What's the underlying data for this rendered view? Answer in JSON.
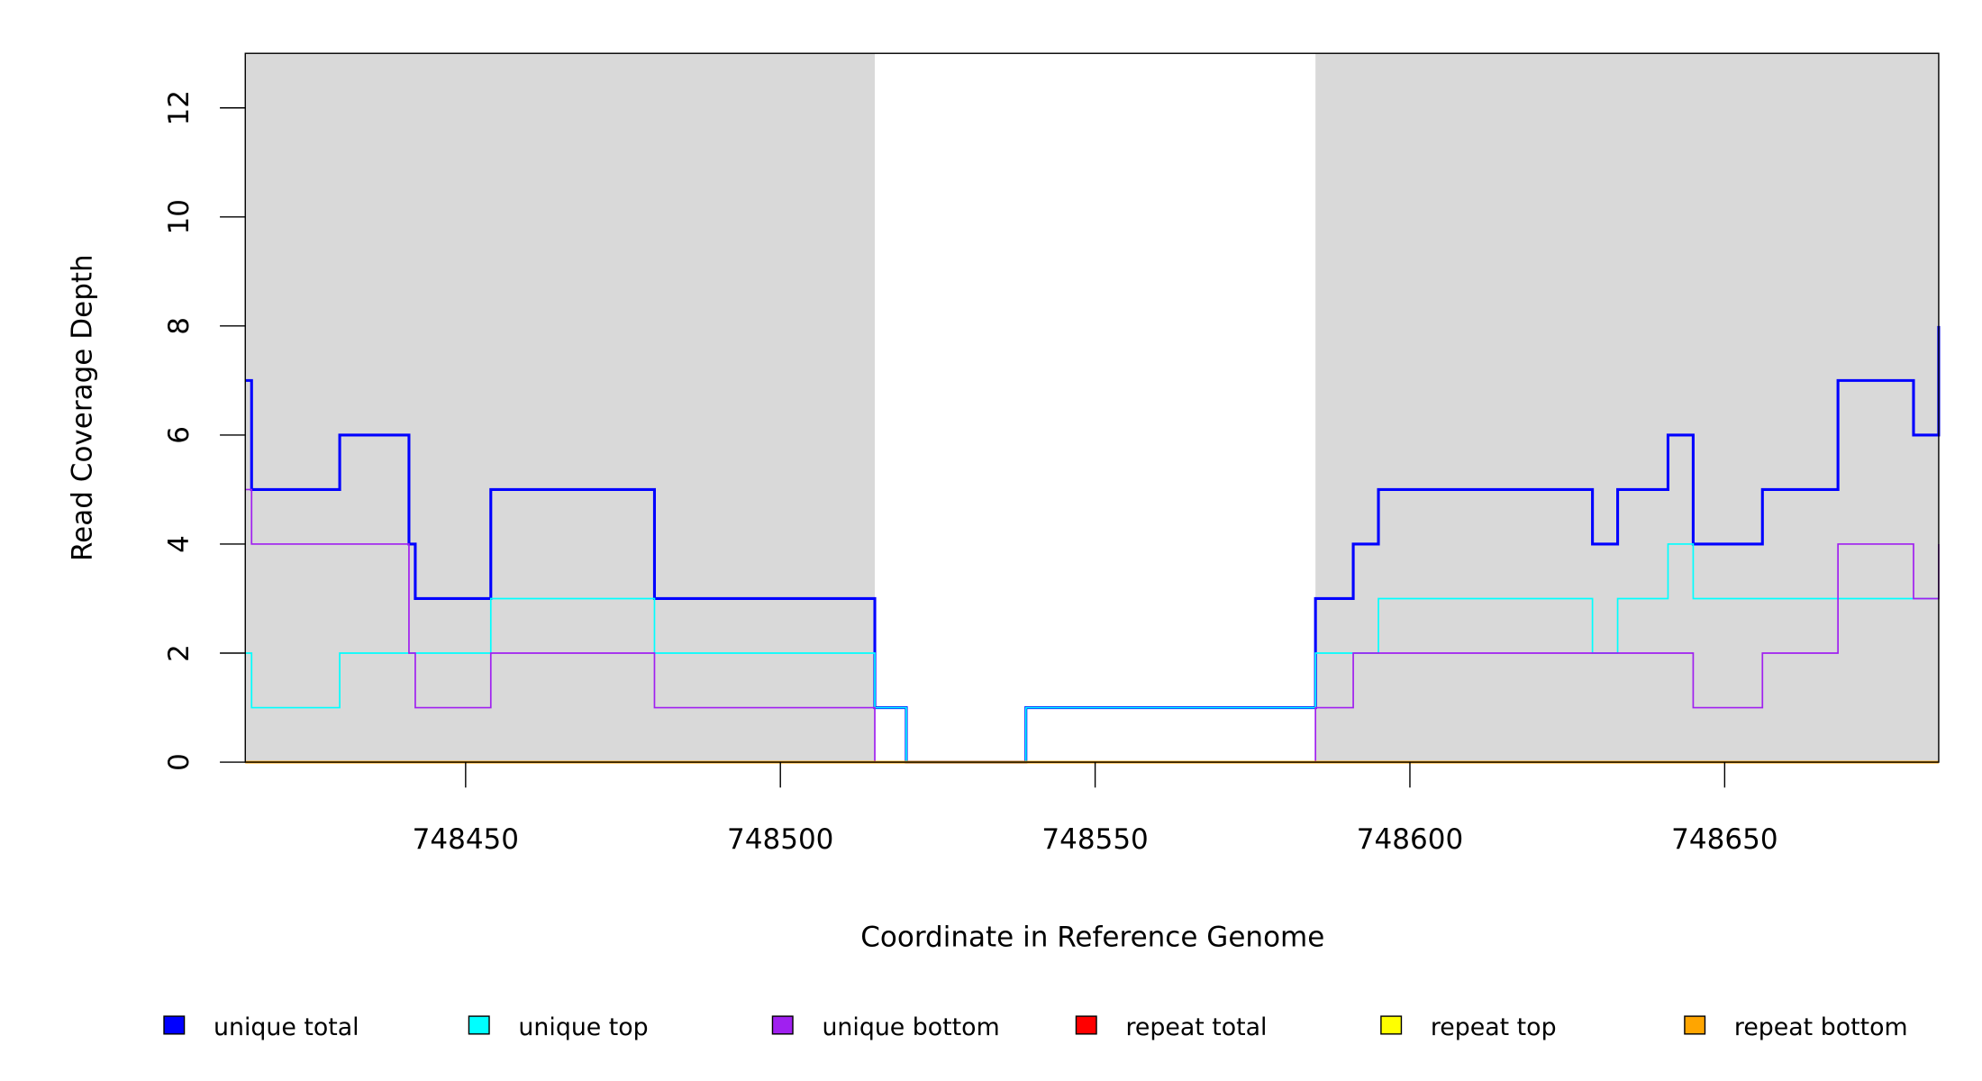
{
  "chart_data": {
    "type": "line",
    "subtype": "step",
    "xlabel": "Coordinate in Reference Genome",
    "ylabel": "Read Coverage Depth",
    "xlim": [
      748415,
      748684
    ],
    "ylim": [
      0,
      13
    ],
    "xticks": [
      748450,
      748500,
      748550,
      748600,
      748650
    ],
    "yticks": [
      0,
      2,
      4,
      6,
      8,
      10,
      12
    ],
    "shaded_regions": [
      [
        748415,
        748515
      ],
      [
        748585,
        748684
      ]
    ],
    "shade_color": "#d9d9d9",
    "legend_position": "bottom",
    "series": [
      {
        "name": "unique total",
        "color": "#0000ff",
        "width": 2.2,
        "steps": [
          [
            748415,
            7
          ],
          [
            748416,
            5
          ],
          [
            748430,
            6
          ],
          [
            748441,
            4
          ],
          [
            748442,
            3
          ],
          [
            748454,
            5
          ],
          [
            748480,
            3
          ],
          [
            748515,
            1
          ],
          [
            748520,
            0
          ],
          [
            748539,
            1
          ],
          [
            748585,
            3
          ],
          [
            748591,
            4
          ],
          [
            748595,
            5
          ],
          [
            748629,
            4
          ],
          [
            748633,
            5
          ],
          [
            748641,
            6
          ],
          [
            748645,
            4
          ],
          [
            748656,
            5
          ],
          [
            748668,
            7
          ],
          [
            748680,
            6
          ],
          [
            748684,
            8
          ]
        ]
      },
      {
        "name": "unique top",
        "color": "#00ffff",
        "width": 1.2,
        "steps": [
          [
            748415,
            2
          ],
          [
            748416,
            1
          ],
          [
            748430,
            2
          ],
          [
            748454,
            3
          ],
          [
            748480,
            2
          ],
          [
            748515,
            1
          ],
          [
            748520,
            0
          ],
          [
            748539,
            1
          ],
          [
            748585,
            2
          ],
          [
            748595,
            3
          ],
          [
            748629,
            2
          ],
          [
            748633,
            3
          ],
          [
            748641,
            4
          ],
          [
            748645,
            3
          ],
          [
            748684,
            3
          ]
        ]
      },
      {
        "name": "unique bottom",
        "color": "#a020f0",
        "width": 1.2,
        "steps": [
          [
            748415,
            5
          ],
          [
            748416,
            4
          ],
          [
            748441,
            2
          ],
          [
            748442,
            1
          ],
          [
            748454,
            2
          ],
          [
            748480,
            1
          ],
          [
            748515,
            0
          ],
          [
            748585,
            1
          ],
          [
            748591,
            2
          ],
          [
            748645,
            1
          ],
          [
            748656,
            2
          ],
          [
            748668,
            4
          ],
          [
            748680,
            3
          ],
          [
            748684,
            4
          ]
        ]
      },
      {
        "name": "repeat total",
        "color": "#ff0000",
        "width": 1.5,
        "steps": [
          [
            748415,
            0
          ],
          [
            748684,
            0
          ]
        ]
      },
      {
        "name": "repeat top",
        "color": "#ffff00",
        "width": 1.2,
        "steps": [
          [
            748415,
            0
          ],
          [
            748684,
            0
          ]
        ]
      },
      {
        "name": "repeat bottom",
        "color": "#ffa500",
        "width": 2,
        "steps": [
          [
            748415,
            0
          ],
          [
            748684,
            0
          ]
        ]
      }
    ]
  }
}
